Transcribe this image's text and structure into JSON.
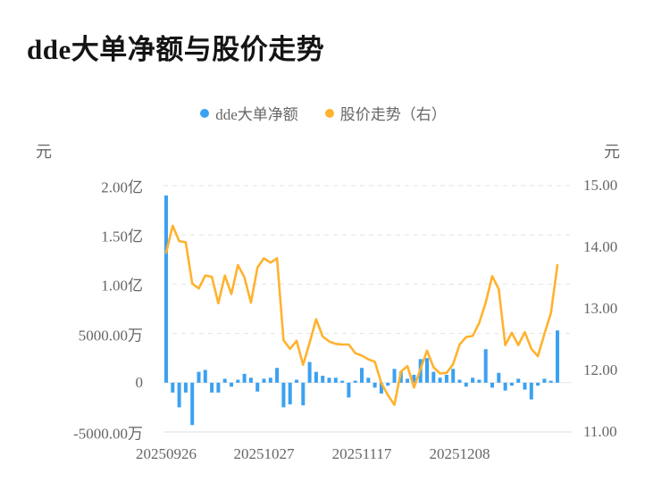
{
  "page": {
    "title": "dde大单净额与股价走势"
  },
  "chart_data": {
    "type": "bar+line",
    "title": "dde大单净额与股价走势",
    "legend_position": "top-center",
    "grid": "horizontal-dashed",
    "x_axis": {
      "labels": [
        "20250926",
        "20251027",
        "20251117",
        "20251208"
      ],
      "label_indices": [
        0,
        15,
        30,
        45
      ],
      "points_count": 61
    },
    "left_axis": {
      "unit": "元",
      "max": 2.0,
      "min": -0.5,
      "ticks": [
        {
          "label": "2.00亿",
          "value": 2.0
        },
        {
          "label": "1.50亿",
          "value": 1.5
        },
        {
          "label": "1.00亿",
          "value": 1.0
        },
        {
          "label": "5000.00万",
          "value": 0.5
        },
        {
          "label": "0",
          "value": 0
        },
        {
          "label": "-5000.00万",
          "value": -0.5
        }
      ]
    },
    "right_axis": {
      "unit": "元",
      "max": 15.0,
      "min": 11.0,
      "ticks": [
        {
          "label": "15.00",
          "value": 15.0
        },
        {
          "label": "14.00",
          "value": 14.0
        },
        {
          "label": "13.00",
          "value": 13.0
        },
        {
          "label": "12.00",
          "value": 12.0
        },
        {
          "label": "11.00",
          "value": 11.0
        }
      ]
    },
    "series": [
      {
        "name": "dde大单净额",
        "type": "bar",
        "axis": "left",
        "unit": "亿元",
        "color": "#3BA1F1",
        "values": [
          1.9,
          -0.1,
          -0.25,
          -0.1,
          -0.43,
          0.11,
          0.13,
          -0.1,
          -0.1,
          0.04,
          -0.04,
          0.03,
          0.09,
          0.05,
          -0.09,
          0.04,
          0.05,
          0.15,
          -0.25,
          -0.22,
          0.03,
          -0.23,
          0.21,
          0.11,
          0.07,
          0.05,
          0.05,
          0.02,
          -0.15,
          0.02,
          0.15,
          0.05,
          -0.05,
          -0.11,
          -0.03,
          0.14,
          0.11,
          0.04,
          0.08,
          0.24,
          0.25,
          0.11,
          0.05,
          0.08,
          0.14,
          0.03,
          -0.04,
          0.05,
          0.03,
          0.34,
          -0.05,
          0.1,
          -0.08,
          -0.03,
          0.04,
          -0.07,
          -0.17,
          -0.03,
          0.04,
          0.02,
          0.53
        ]
      },
      {
        "name": "股价走势（右）",
        "type": "line",
        "axis": "right",
        "unit": "元",
        "color": "#FFB22E",
        "values": [
          13.91,
          14.35,
          14.1,
          14.08,
          13.41,
          13.33,
          13.54,
          13.52,
          13.09,
          13.54,
          13.24,
          13.71,
          13.51,
          13.1,
          13.67,
          13.82,
          13.75,
          13.82,
          12.49,
          12.35,
          12.48,
          12.09,
          12.45,
          12.83,
          12.55,
          12.47,
          12.43,
          12.42,
          12.42,
          12.28,
          12.24,
          12.18,
          12.14,
          11.79,
          11.6,
          11.44,
          11.98,
          12.07,
          11.72,
          12.02,
          12.32,
          12.05,
          11.95,
          11.96,
          12.1,
          12.42,
          12.54,
          12.56,
          12.77,
          13.1,
          13.53,
          13.32,
          12.41,
          12.61,
          12.41,
          12.62,
          12.35,
          12.23,
          12.59,
          12.93,
          13.71
        ]
      }
    ]
  }
}
